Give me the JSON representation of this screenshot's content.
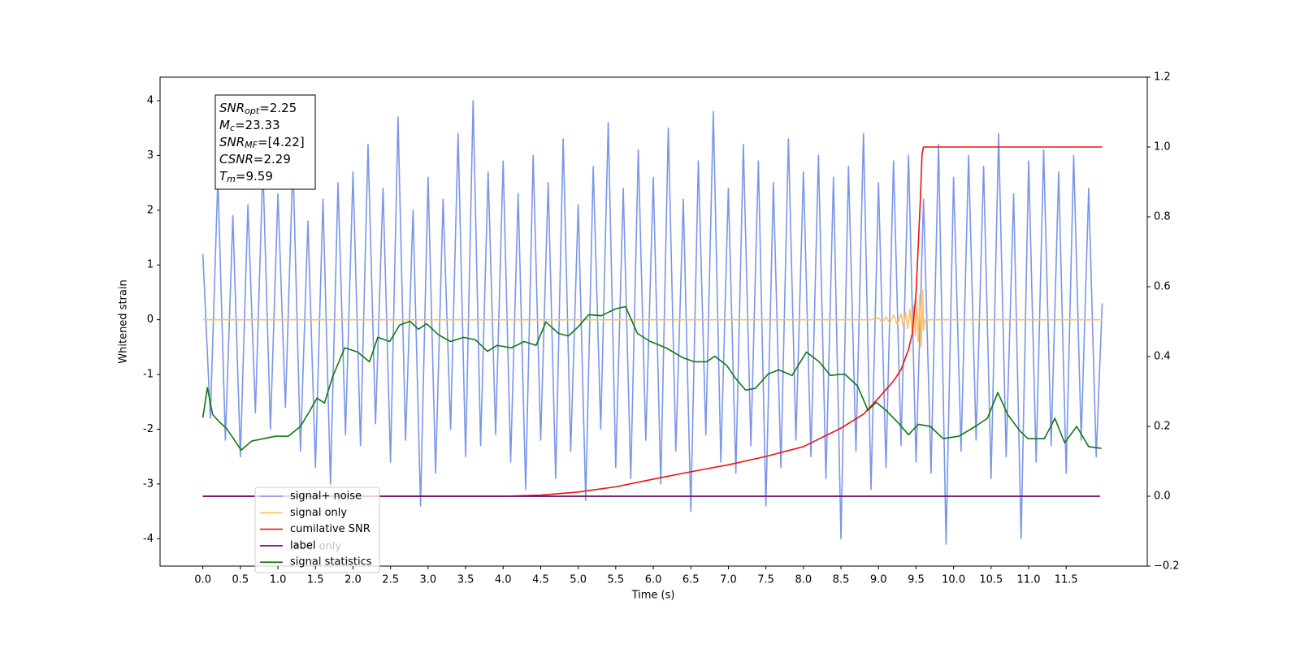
{
  "chart_data": {
    "type": "line",
    "x_label": "Time (s)",
    "y_label": "Whitened strain",
    "xlim": [
      -0.57,
      12.58
    ],
    "ylim": [
      -4.5,
      4.43
    ],
    "y2lim": [
      -0.2,
      1.2
    ],
    "xticks": [
      {
        "value": 0,
        "label": "0.0"
      },
      {
        "value": 0.5,
        "label": "0.5"
      },
      {
        "value": 1,
        "label": "1.0"
      },
      {
        "value": 1.5,
        "label": "1.5"
      },
      {
        "value": 2,
        "label": "2.0"
      },
      {
        "value": 2.5,
        "label": "2.5"
      },
      {
        "value": 3,
        "label": "3.0"
      },
      {
        "value": 3.5,
        "label": "3.5"
      },
      {
        "value": 4,
        "label": "4.0"
      },
      {
        "value": 4.5,
        "label": "4.5"
      },
      {
        "value": 5,
        "label": "5.0"
      },
      {
        "value": 5.5,
        "label": "5.5"
      },
      {
        "value": 6,
        "label": "6.0"
      },
      {
        "value": 6.5,
        "label": "6.5"
      },
      {
        "value": 7,
        "label": "7.0"
      },
      {
        "value": 7.5,
        "label": "7.5"
      },
      {
        "value": 8,
        "label": "8.0"
      },
      {
        "value": 8.5,
        "label": "8.5"
      },
      {
        "value": 9,
        "label": "9.0"
      },
      {
        "value": 9.5,
        "label": "9.5"
      },
      {
        "value": 10,
        "label": "10.0"
      },
      {
        "value": 10.5,
        "label": "10.5"
      },
      {
        "value": 11,
        "label": "11.0"
      },
      {
        "value": 11.5,
        "label": "11.5"
      }
    ],
    "yticks": [
      4,
      3,
      2,
      1,
      0,
      -1,
      -2,
      -3,
      -4
    ],
    "y2ticks": [
      {
        "value": 1.2,
        "label": "1.2"
      },
      {
        "value": 1,
        "label": "1.0"
      },
      {
        "value": 0.8,
        "label": "0.8"
      },
      {
        "value": 0.6,
        "label": "0.6"
      },
      {
        "value": 0.4,
        "label": "0.4"
      },
      {
        "value": 0.2,
        "label": "0.2"
      },
      {
        "value": 0,
        "label": "0.0"
      },
      {
        "value": -0.2,
        "label": "−0.2"
      }
    ],
    "annotations": [
      {
        "main": "SNR",
        "sub": "opt",
        "text": "=2.25"
      },
      {
        "main": "M",
        "sub": "c",
        "text": "=23.33"
      },
      {
        "main": "SNR",
        "sub": "MF",
        "text": "=[4.22]"
      },
      {
        "main": "CSNR",
        "text": "=2.29"
      },
      {
        "main": "T",
        "sub": "m",
        "text": "=9.59"
      }
    ],
    "series": [
      {
        "name": "signal+ noise",
        "color": "#7b95e8",
        "x": [
          0,
          0.1,
          0.2,
          0.3,
          0.4,
          0.5,
          0.6,
          0.7,
          0.8,
          0.9,
          1,
          1.1,
          1.2,
          1.3,
          1.4,
          1.5,
          1.6,
          1.7,
          1.8,
          1.9,
          2,
          2.1,
          2.2,
          2.3,
          2.4,
          2.5,
          2.6,
          2.7,
          2.8,
          2.9,
          3,
          3.1,
          3.2,
          3.3,
          3.4,
          3.5,
          3.6,
          3.7,
          3.8,
          3.9,
          4,
          4.1,
          4.2,
          4.3,
          4.4,
          4.5,
          4.6,
          4.7,
          4.8,
          4.9,
          5,
          5.1,
          5.2,
          5.3,
          5.4,
          5.5,
          5.6,
          5.7,
          5.8,
          5.9,
          6,
          6.1,
          6.2,
          6.3,
          6.4,
          6.5,
          6.6,
          6.7,
          6.8,
          6.9,
          7,
          7.1,
          7.2,
          7.3,
          7.4,
          7.5,
          7.6,
          7.7,
          7.8,
          7.9,
          8,
          8.1,
          8.2,
          8.3,
          8.4,
          8.5,
          8.6,
          8.7,
          8.8,
          8.9,
          9,
          9.1,
          9.2,
          9.3,
          9.4,
          9.5,
          9.6,
          9.7,
          9.8,
          9.9,
          10,
          10.1,
          10.2,
          10.3,
          10.4,
          10.5,
          10.6,
          10.7,
          10.8,
          10.9,
          11,
          11.1,
          11.2,
          11.3,
          11.4,
          11.5,
          11.6,
          11.7,
          11.8,
          11.9,
          11.98
        ],
        "values": [
          1.2,
          -1.8,
          2.6,
          -2.2,
          1.9,
          -2.5,
          2.1,
          -1.7,
          2.8,
          -2.0,
          2.3,
          -1.6,
          2.9,
          -2.4,
          1.8,
          -2.7,
          2.2,
          -3.0,
          2.5,
          -2.1,
          2.7,
          -2.3,
          3.2,
          -1.9,
          2.4,
          -2.6,
          3.7,
          -2.2,
          2.0,
          -3.4,
          2.6,
          -2.8,
          2.2,
          -2.0,
          3.4,
          -2.5,
          4.0,
          -2.3,
          2.7,
          -2.1,
          2.9,
          -2.6,
          2.3,
          -3.1,
          3.0,
          -2.2,
          2.5,
          -2.9,
          3.3,
          -2.4,
          2.1,
          -3.3,
          2.8,
          -2.0,
          3.6,
          -2.7,
          2.4,
          -2.9,
          3.1,
          -2.2,
          2.6,
          -3.0,
          3.5,
          -2.4,
          2.2,
          -3.5,
          2.9,
          -2.1,
          3.8,
          -2.6,
          2.4,
          -2.8,
          3.2,
          -2.3,
          2.9,
          -3.4,
          2.5,
          -2.7,
          3.3,
          -2.2,
          2.7,
          -2.5,
          3.0,
          -2.9,
          2.6,
          -4.0,
          2.8,
          -2.4,
          3.4,
          -3.1,
          2.5,
          -2.7,
          2.9,
          -2.3,
          3.0,
          -2.6,
          2.2,
          -2.8,
          3.2,
          -4.1,
          2.6,
          -2.4,
          3.0,
          -2.2,
          2.8,
          -2.9,
          3.4,
          -2.5,
          2.3,
          -4.0,
          2.9,
          -2.6,
          3.1,
          -2.3,
          2.7,
          -2.8,
          3.0,
          -2.2,
          2.4,
          -2.5,
          0.3
        ]
      },
      {
        "name": "signal only",
        "color": "#ffbf69",
        "x": [
          0,
          8.9,
          9.0,
          9.05,
          9.1,
          9.15,
          9.2,
          9.25,
          9.3,
          9.33,
          9.36,
          9.39,
          9.42,
          9.45,
          9.47,
          9.49,
          9.51,
          9.53,
          9.55,
          9.57,
          9.59,
          9.6,
          9.62,
          11.98
        ],
        "values": [
          0,
          0,
          0.03,
          -0.04,
          0.05,
          -0.06,
          0.08,
          -0.09,
          0.11,
          -0.12,
          0.14,
          -0.16,
          0.19,
          -0.22,
          0.26,
          -0.3,
          0.35,
          -0.4,
          0.45,
          -0.5,
          0.55,
          -0.2,
          0,
          0
        ]
      },
      {
        "name": "cumilative SNR",
        "color": "#ee1111",
        "axis": "y2",
        "x": [
          0,
          4.0,
          4.5,
          5.0,
          5.5,
          6.0,
          6.5,
          7.0,
          7.5,
          8.0,
          8.5,
          8.8,
          9.0,
          9.2,
          9.3,
          9.4,
          9.45,
          9.5,
          9.53,
          9.56,
          9.58,
          9.6,
          11.98
        ],
        "values": [
          0,
          0,
          0.003,
          0.012,
          0.027,
          0.049,
          0.07,
          0.09,
          0.114,
          0.142,
          0.195,
          0.235,
          0.281,
          0.33,
          0.362,
          0.42,
          0.466,
          0.58,
          0.72,
          0.86,
          0.98,
          1.0,
          1.0
        ]
      },
      {
        "name": "label",
        "color": "#6a0a6a",
        "axis": "y2",
        "x": [
          0,
          11.95
        ],
        "values": [
          0,
          0
        ]
      },
      {
        "name": "label only",
        "color": "#6a0a6a",
        "axis": "y2",
        "x": [
          0,
          11.95
        ],
        "values": [
          0,
          0
        ]
      },
      {
        "name": "signal statistics",
        "color": "#117711",
        "axis": "y2",
        "x": [
          0,
          0.06,
          0.13,
          0.22,
          0.32,
          0.51,
          0.65,
          0.81,
          0.97,
          1.14,
          1.3,
          1.41,
          1.52,
          1.62,
          1.73,
          1.89,
          2.06,
          2.22,
          2.33,
          2.49,
          2.62,
          2.76,
          2.87,
          2.98,
          3.14,
          3.3,
          3.47,
          3.63,
          3.79,
          3.92,
          4.11,
          4.28,
          4.44,
          4.57,
          4.74,
          4.87,
          5.0,
          5.14,
          5.31,
          5.49,
          5.63,
          5.79,
          5.96,
          6.17,
          6.39,
          6.55,
          6.71,
          6.82,
          6.98,
          7.09,
          7.23,
          7.36,
          7.53,
          7.67,
          7.85,
          8.04,
          8.21,
          8.36,
          8.55,
          8.72,
          8.86,
          8.97,
          9.1,
          9.26,
          9.4,
          9.53,
          9.69,
          9.86,
          10.07,
          10.29,
          10.45,
          10.59,
          10.72,
          10.88,
          10.99,
          11.21,
          11.35,
          11.48,
          11.64,
          11.8,
          11.97
        ],
        "values": [
          0.225,
          0.311,
          0.234,
          0.213,
          0.193,
          0.132,
          0.158,
          0.165,
          0.172,
          0.172,
          0.2,
          0.239,
          0.281,
          0.267,
          0.343,
          0.425,
          0.413,
          0.385,
          0.455,
          0.443,
          0.49,
          0.501,
          0.478,
          0.494,
          0.462,
          0.443,
          0.455,
          0.448,
          0.415,
          0.432,
          0.425,
          0.443,
          0.432,
          0.499,
          0.466,
          0.459,
          0.485,
          0.52,
          0.517,
          0.536,
          0.543,
          0.466,
          0.443,
          0.425,
          0.397,
          0.385,
          0.385,
          0.401,
          0.374,
          0.339,
          0.304,
          0.309,
          0.35,
          0.362,
          0.346,
          0.413,
          0.385,
          0.346,
          0.35,
          0.316,
          0.246,
          0.269,
          0.246,
          0.211,
          0.176,
          0.206,
          0.2,
          0.165,
          0.172,
          0.2,
          0.223,
          0.297,
          0.234,
          0.188,
          0.165,
          0.165,
          0.223,
          0.153,
          0.2,
          0.142,
          0.137
        ]
      }
    ]
  }
}
